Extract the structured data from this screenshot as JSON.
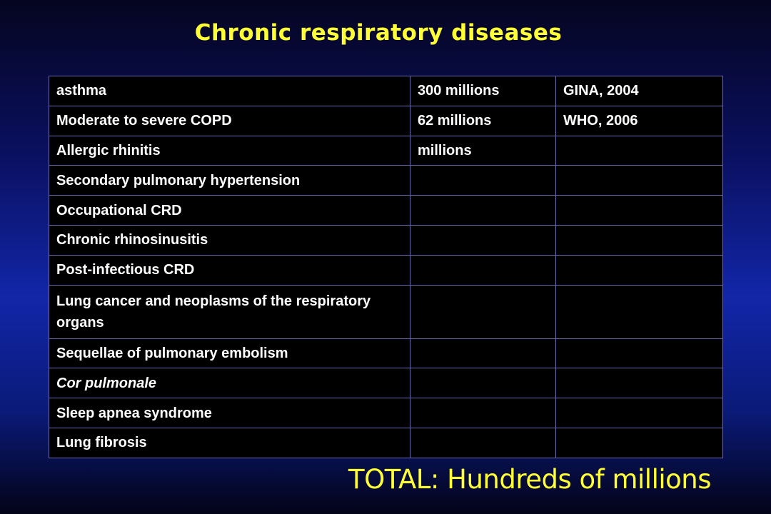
{
  "title": "Chronic respiratory diseases",
  "rows": [
    {
      "disease": "asthma",
      "prevalence": "300 millions",
      "source": "GINA, 2004"
    },
    {
      "disease": "Moderate to severe COPD",
      "prevalence": "62 millions",
      "source": "WHO, 2006"
    },
    {
      "disease": "Allergic rhinitis",
      "prevalence": "millions",
      "source": ""
    },
    {
      "disease": "Secondary pulmonary hypertension",
      "prevalence": "",
      "source": ""
    },
    {
      "disease": "Occupational CRD",
      "prevalence": "",
      "source": ""
    },
    {
      "disease": "Chronic rhinosinusitis",
      "prevalence": "",
      "source": ""
    },
    {
      "disease": "Post-infectious CRD",
      "prevalence": "",
      "source": ""
    },
    {
      "disease": "Lung cancer and neoplasms of the respiratory organs",
      "prevalence": "",
      "source": ""
    },
    {
      "disease": "Sequellae of pulmonary embolism",
      "prevalence": "",
      "source": ""
    },
    {
      "disease": "Cor pulmonale",
      "prevalence": "",
      "source": ""
    },
    {
      "disease": "Sleep apnea syndrome",
      "prevalence": "",
      "source": ""
    },
    {
      "disease": "Lung fibrosis",
      "prevalence": "",
      "source": ""
    }
  ],
  "total": "TOTAL: Hundreds of millions",
  "colors": {
    "title": "#ffff33",
    "table_background": "#000000",
    "table_text": "#ffffff",
    "table_border": "#6a6aa8"
  }
}
